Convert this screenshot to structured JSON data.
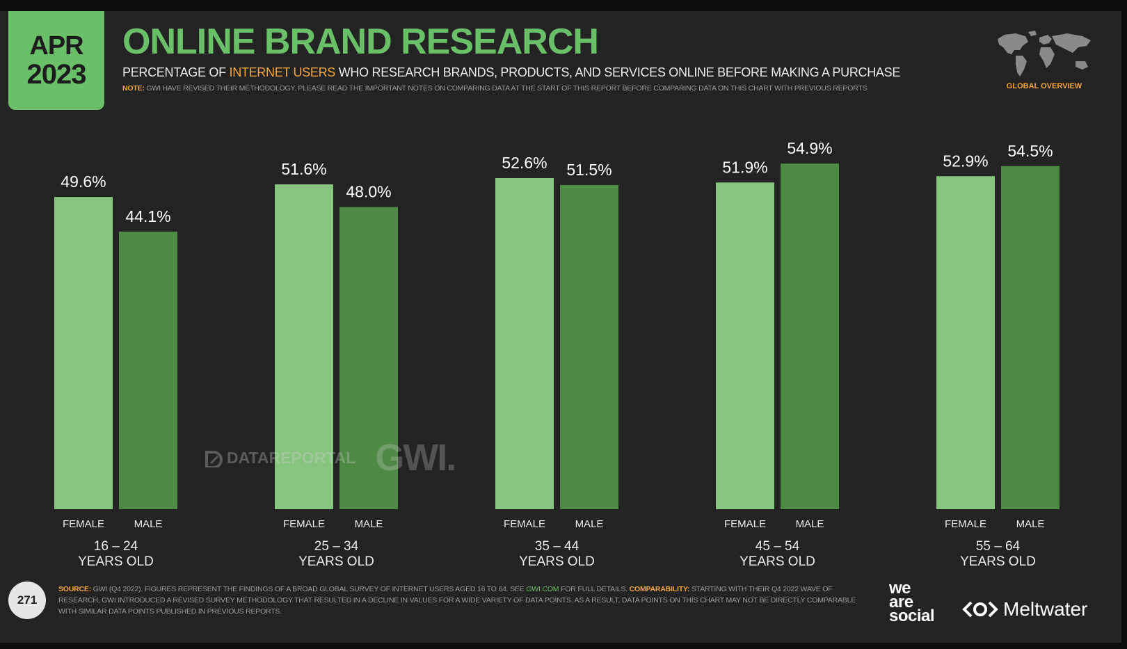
{
  "header": {
    "month": "APR",
    "year": "2023",
    "title": "ONLINE BRAND RESEARCH",
    "subtitle_pre": "PERCENTAGE OF ",
    "subtitle_highlight": "INTERNET USERS",
    "subtitle_post": " WHO RESEARCH BRANDS, PRODUCTS, AND SERVICES ONLINE BEFORE MAKING A PURCHASE",
    "note_label": "NOTE:",
    "note_text": " GWI HAVE REVISED THEIR METHODOLOGY. PLEASE READ THE IMPORTANT NOTES ON COMPARING DATA AT THE START OF THIS REPORT BEFORE COMPARING DATA ON THIS CHART WITH PREVIOUS REPORTS",
    "global_label": "GLOBAL OVERVIEW"
  },
  "colors": {
    "accent": "#6abf69",
    "female_bar": "#86c47f",
    "male_bar": "#4e8a45",
    "highlight": "#f3a63b",
    "background": "#232323"
  },
  "chart_data": {
    "type": "bar",
    "categories": [
      "16 – 24",
      "25 – 34",
      "35 – 44",
      "45 – 54",
      "55 – 64"
    ],
    "category_suffix": "YEARS OLD",
    "series": [
      {
        "name": "FEMALE",
        "values": [
          49.6,
          51.6,
          52.6,
          51.9,
          52.9
        ]
      },
      {
        "name": "MALE",
        "values": [
          44.1,
          48.0,
          51.5,
          54.9,
          54.5
        ]
      }
    ],
    "value_suffix": "%",
    "ylim": [
      0,
      60
    ],
    "grid": false,
    "legend": "none"
  },
  "watermark": {
    "datareportal": "DATAREPORTAL",
    "gwi": "GWI."
  },
  "footer": {
    "page_number": "271",
    "source_label": "SOURCE:",
    "source_text_1": " GWI (Q4 2022). FIGURES REPRESENT THE FINDINGS OF A BROAD GLOBAL SURVEY OF INTERNET USERS AGED 16 TO 64. SEE ",
    "source_link": "GWI.COM",
    "source_text_2": " FOR FULL DETAILS. ",
    "comparability_label": "COMPARABILITY:",
    "comparability_text": " STARTING WITH THEIR Q4 2022 WAVE OF RESEARCH, GWI INTRODUCED A REVISED SURVEY METHODOLOGY THAT RESULTED IN A DECLINE IN VALUES FOR A WIDE VARIETY OF DATA POINTS. AS A RESULT, DATA POINTS ON THIS CHART MAY NOT BE DIRECTLY COMPARABLE WITH SIMILAR DATA POINTS PUBLISHED IN PREVIOUS REPORTS.",
    "we_are_social": [
      "we",
      "are",
      "social"
    ],
    "meltwater": "Meltwater"
  }
}
